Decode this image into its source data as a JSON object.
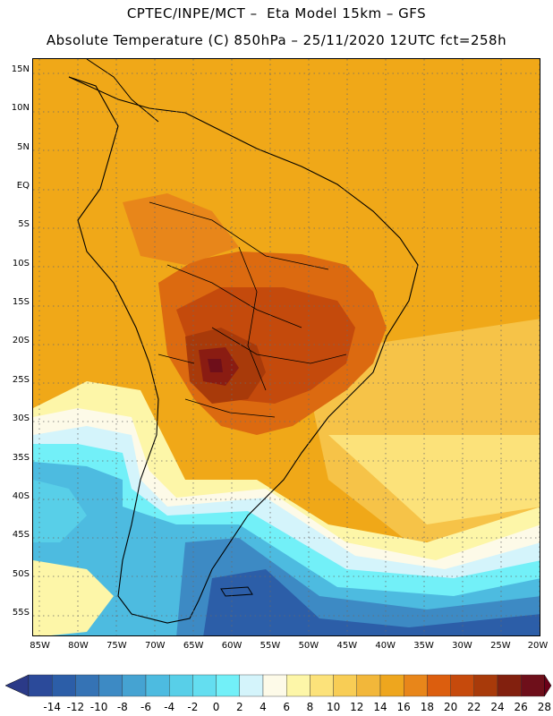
{
  "header": {
    "line1": "CPTEC/INPE/MCT –  Eta Model 15km – GFS",
    "line2": "Absolute Temperature (C) 850hPa – 25/11/2020 12UTC fct=258h"
  },
  "axes": {
    "lat_labels": [
      "15N",
      "10N",
      "5N",
      "EQ",
      "5S",
      "10S",
      "15S",
      "20S",
      "25S",
      "30S",
      "35S",
      "40S",
      "45S",
      "50S",
      "55S"
    ],
    "lat_values": [
      15,
      10,
      5,
      0,
      -5,
      -10,
      -15,
      -20,
      -25,
      -30,
      -35,
      -40,
      -45,
      -50,
      -55
    ],
    "lon_labels": [
      "85W",
      "80W",
      "75W",
      "70W",
      "65W",
      "60W",
      "55W",
      "50W",
      "45W",
      "40W",
      "35W",
      "30W",
      "25W",
      "20W"
    ],
    "lon_values": [
      -85,
      -80,
      -75,
      -70,
      -65,
      -60,
      -55,
      -50,
      -45,
      -40,
      -35,
      -30,
      -25,
      -20
    ],
    "lat_range": [
      -58,
      16.5
    ],
    "lon_range": [
      -86,
      -19.8
    ]
  },
  "colorbar": {
    "labels": [
      "-14",
      "-12",
      "-10",
      "-8",
      "-6",
      "-4",
      "-2",
      "0",
      "2",
      "4",
      "6",
      "8",
      "10",
      "12",
      "14",
      "16",
      "18",
      "20",
      "22",
      "24",
      "26",
      "28"
    ],
    "colors": [
      "#2b4a9a",
      "#2c5ea8",
      "#3573b5",
      "#3d8ac4",
      "#45a3d2",
      "#4dbbe0",
      "#58cfe8",
      "#64def0",
      "#72f0f8",
      "#d4f4fb",
      "#fdfae8",
      "#fdf6a8",
      "#fce27a",
      "#f8cd55",
      "#f2b73a",
      "#eea61e",
      "#e8861a",
      "#dc5e0e",
      "#c64a0c",
      "#a83a0a",
      "#82200e",
      "#6e0f1a"
    ],
    "under_color": "#2b3a88",
    "over_color": "#6b0018"
  },
  "map": {
    "variable": "Absolute Temperature",
    "units": "C",
    "level": "850hPa",
    "colors": {
      "ocean_warm": "#f0a818",
      "ocean_light": "#f6c348",
      "land_hot": "#dc6a10",
      "land_hotter": "#c44a0c",
      "heat_core": "#8a1c12",
      "heat_center": "#6e0f1a",
      "cold_blue_dark": "#2c5ea8",
      "cold_blue": "#3d8ac4",
      "cold_cyan": "#4dbbe0",
      "cold_light": "#72f0f8",
      "pale": "#d4f4fb",
      "cream": "#fdfae8",
      "yellow": "#fdf6a8",
      "coast": "#000000"
    }
  }
}
